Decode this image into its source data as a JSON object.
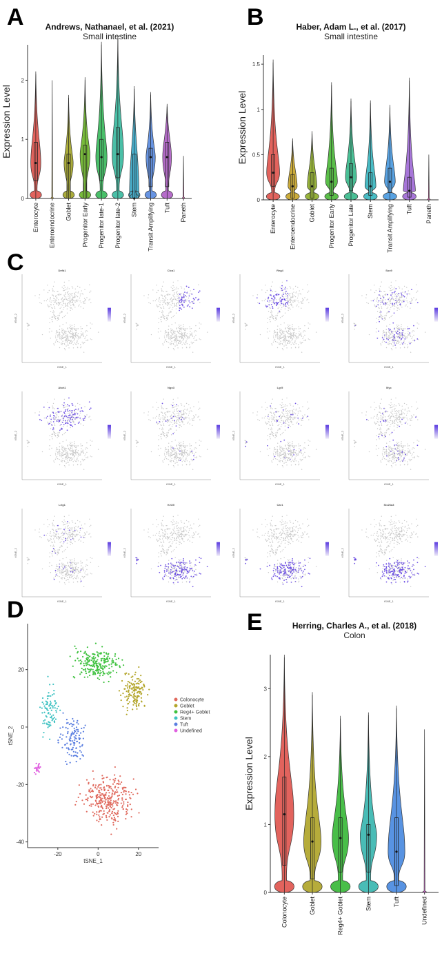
{
  "panels": {
    "a": {
      "letter": "A"
    },
    "b": {
      "letter": "B"
    },
    "c": {
      "letter": "C"
    },
    "d": {
      "letter": "D"
    },
    "e": {
      "letter": "E"
    }
  },
  "chart_data": [
    {
      "id": "A",
      "type": "violin",
      "title": "Andrews, Nathanael, et al. (2021)",
      "subtitle": "Small intestine",
      "ylabel": "Expression Level",
      "ylim": [
        0,
        2.6
      ],
      "yticks": [
        0,
        1,
        2
      ],
      "categories": [
        "Enterocyte",
        "Enteroendocrine",
        "Goblet",
        "Progenitor Early",
        "Progenitor late-1",
        "Progenitor late-2",
        "Stem",
        "Transit Amplifying",
        "Tuft",
        "Paneth"
      ],
      "colors": [
        "#e0564f",
        "#c8a52a",
        "#a3a52a",
        "#6cb52a",
        "#3aba5c",
        "#3bbaa0",
        "#3aa8c8",
        "#5a8be0",
        "#b061c6",
        "#e060b0"
      ],
      "max": [
        2.15,
        2.0,
        1.75,
        2.05,
        2.65,
        2.75,
        1.9,
        1.8,
        1.6,
        0.72
      ],
      "median": [
        0.6,
        0.0,
        0.6,
        0.75,
        0.7,
        0.75,
        0.0,
        0.7,
        0.7,
        0.0
      ],
      "q1": [
        0.3,
        0.0,
        0.0,
        0.0,
        0.3,
        0.35,
        0.0,
        0.2,
        0.2,
        0.0
      ],
      "q3": [
        0.95,
        0.0,
        0.75,
        0.9,
        1.0,
        1.2,
        0.75,
        0.85,
        0.95,
        0.0
      ]
    },
    {
      "id": "B",
      "type": "violin",
      "title": "Haber, Adam L., et al. (2017)",
      "subtitle": "Small intestine",
      "ylabel": "Expression Level",
      "ylim": [
        0,
        1.6
      ],
      "yticks": [
        0.0,
        0.5,
        1.0,
        1.5
      ],
      "categories": [
        "Enterocyte",
        "Enteroendocrine",
        "Goblet",
        "Progenitor Early",
        "Progenitor Late",
        "Stem",
        "Transit Amplifying",
        "Tuft",
        "Paneth"
      ],
      "colors": [
        "#e0564f",
        "#c8a52a",
        "#8fae2a",
        "#4cb83a",
        "#3aba8c",
        "#3ab6c0",
        "#4a9ae0",
        "#a06ad6",
        "#e060b0"
      ],
      "max": [
        1.55,
        0.68,
        0.76,
        1.3,
        1.12,
        1.1,
        1.05,
        1.35,
        0.5
      ],
      "median": [
        0.3,
        0.15,
        0.15,
        0.2,
        0.25,
        0.15,
        0.2,
        0.1,
        0.0
      ],
      "q1": [
        0.15,
        0.02,
        0.02,
        0.05,
        0.1,
        0.05,
        0.08,
        0.03,
        0.0
      ],
      "q3": [
        0.5,
        0.28,
        0.3,
        0.35,
        0.4,
        0.3,
        0.35,
        0.25,
        0.0
      ]
    },
    {
      "id": "C",
      "type": "scatter",
      "xlabel": "tSNE_1",
      "ylabel": "tSNE_2",
      "genes": [
        "Defb1",
        "Clca1",
        "Reg4",
        "Sox9",
        "Atoh1",
        "Ngn3",
        "Lgr5",
        "Myc",
        "Lrig1",
        "Krt20",
        "Car1",
        "Slc26a3"
      ],
      "expression_region": [
        "none",
        "right",
        "top-left",
        "mixed",
        "top",
        "sparse",
        "sparse",
        "sparse",
        "sparse",
        "bottom",
        "bottom",
        "bottom"
      ],
      "expression_color": "#5a3ae0"
    },
    {
      "id": "D",
      "type": "scatter",
      "xlabel": "tSNE_1",
      "ylabel": "tSNE_2",
      "xlim": [
        -35,
        30
      ],
      "ylim": [
        -42,
        36
      ],
      "xticks": [
        -20,
        0,
        20
      ],
      "yticks": [
        -40,
        -20,
        0,
        20
      ],
      "series": [
        {
          "name": "Colonocyte",
          "color": "#e06a5e",
          "center": [
            5,
            -25
          ],
          "spread": [
            12,
            8
          ],
          "count": 320
        },
        {
          "name": "Goblet",
          "color": "#b3a52a",
          "center": [
            18,
            12
          ],
          "spread": [
            6,
            6
          ],
          "count": 150
        },
        {
          "name": "Reg4+ Goblet",
          "color": "#3fc23f",
          "center": [
            0,
            22
          ],
          "spread": [
            10,
            5
          ],
          "count": 220
        },
        {
          "name": "Stem",
          "color": "#3fc2c2",
          "center": [
            -24,
            6
          ],
          "spread": [
            4,
            8
          ],
          "count": 90
        },
        {
          "name": "Tuft",
          "color": "#5a7ee0",
          "center": [
            -12,
            -4
          ],
          "spread": [
            6,
            8
          ],
          "count": 110
        },
        {
          "name": "Undefined",
          "color": "#e060e0",
          "center": [
            -30,
            -14
          ],
          "spread": [
            1.5,
            2
          ],
          "count": 25
        }
      ]
    },
    {
      "id": "E",
      "type": "violin",
      "title": "Herring, Charles A., et al. (2018)",
      "subtitle": "Colon",
      "ylabel": "Expression Level",
      "ylim": [
        0,
        3.5
      ],
      "yticks": [
        0,
        1,
        2,
        3
      ],
      "categories": [
        "Colonocyte",
        "Goblet",
        "Reg4+ Goblet",
        "Stem",
        "Tuft",
        "Undefined"
      ],
      "colors": [
        "#e0564f",
        "#b0a52a",
        "#3ab83a",
        "#3ab6b0",
        "#4a8ae0",
        "#e060e0"
      ],
      "max": [
        3.5,
        2.95,
        2.6,
        2.65,
        2.75,
        2.4
      ],
      "median": [
        1.15,
        0.75,
        0.8,
        0.85,
        0.6,
        0.0
      ],
      "q1": [
        0.4,
        0.2,
        0.3,
        0.3,
        0.1,
        0.0
      ],
      "q3": [
        1.7,
        1.1,
        1.1,
        1.0,
        1.1,
        0.0
      ]
    }
  ]
}
